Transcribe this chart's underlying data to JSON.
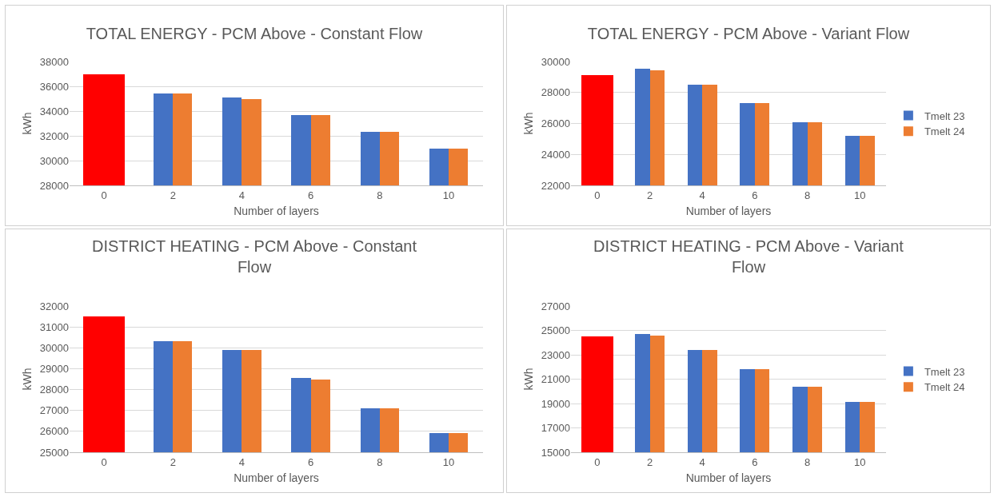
{
  "chart_data": [
    {
      "type": "bar",
      "title": "TOTAL ENERGY - PCM Above - Constant Flow",
      "xlabel": "Number of layers",
      "ylabel": "kWh",
      "categories": [
        "0",
        "2",
        "4",
        "6",
        "8",
        "10"
      ],
      "ylim": [
        28000,
        38000
      ],
      "yticks": [
        28000,
        30000,
        32000,
        34000,
        36000,
        38000
      ],
      "grid": "y",
      "legend": false,
      "series": [
        {
          "color": "#ff0000",
          "values": [
            37000,
            null,
            null,
            null,
            null,
            null
          ]
        },
        {
          "color": "#4472c4",
          "values": [
            null,
            35450,
            35100,
            33700,
            32300,
            31000
          ]
        },
        {
          "color": "#ed7d31",
          "values": [
            null,
            35450,
            35000,
            33700,
            32300,
            31000
          ]
        }
      ]
    },
    {
      "type": "bar",
      "title": "TOTAL ENERGY - PCM Above - Variant Flow",
      "xlabel": "Number of layers",
      "ylabel": "kWh",
      "categories": [
        "0",
        "2",
        "4",
        "6",
        "8",
        "10"
      ],
      "ylim": [
        22000,
        30000
      ],
      "yticks": [
        22000,
        24000,
        26000,
        28000,
        30000
      ],
      "grid": "y",
      "legend": "right",
      "series": [
        {
          "color": "#ff0000",
          "values": [
            29100,
            null,
            null,
            null,
            null,
            null
          ]
        },
        {
          "name": "Tmelt 23",
          "color": "#4472c4",
          "values": [
            null,
            29550,
            28500,
            27300,
            26100,
            25200
          ]
        },
        {
          "name": "Tmelt 24",
          "color": "#ed7d31",
          "values": [
            null,
            29450,
            28500,
            27300,
            26100,
            25200
          ]
        }
      ]
    },
    {
      "type": "bar",
      "title": "DISTRICT HEATING - PCM Above - Constant Flow",
      "xlabel": "Number of layers",
      "ylabel": "kWh",
      "categories": [
        "0",
        "2",
        "4",
        "6",
        "8",
        "10"
      ],
      "ylim": [
        25000,
        32000
      ],
      "yticks": [
        25000,
        26000,
        27000,
        28000,
        29000,
        30000,
        31000,
        32000
      ],
      "grid": "y",
      "legend": false,
      "series": [
        {
          "color": "#ff0000",
          "values": [
            31500,
            null,
            null,
            null,
            null,
            null
          ]
        },
        {
          "color": "#4472c4",
          "values": [
            null,
            30300,
            29900,
            28550,
            27100,
            25900
          ]
        },
        {
          "color": "#ed7d31",
          "values": [
            null,
            30300,
            29900,
            28500,
            27100,
            25900
          ]
        }
      ]
    },
    {
      "type": "bar",
      "title": "DISTRICT HEATING - PCM Above - Variant Flow",
      "xlabel": "Number of layers",
      "ylabel": "kWh",
      "categories": [
        "0",
        "2",
        "4",
        "6",
        "8",
        "10"
      ],
      "ylim": [
        15000,
        27000
      ],
      "yticks": [
        15000,
        17000,
        19000,
        21000,
        23000,
        25000,
        27000
      ],
      "grid": "y",
      "legend": "right",
      "series": [
        {
          "color": "#ff0000",
          "values": [
            24500,
            null,
            null,
            null,
            null,
            null
          ]
        },
        {
          "name": "Tmelt 23",
          "color": "#4472c4",
          "values": [
            null,
            24700,
            23400,
            21800,
            20400,
            19100
          ]
        },
        {
          "name": "Tmelt 24",
          "color": "#ed7d31",
          "values": [
            null,
            24600,
            23400,
            21800,
            20400,
            19100
          ]
        }
      ]
    }
  ]
}
